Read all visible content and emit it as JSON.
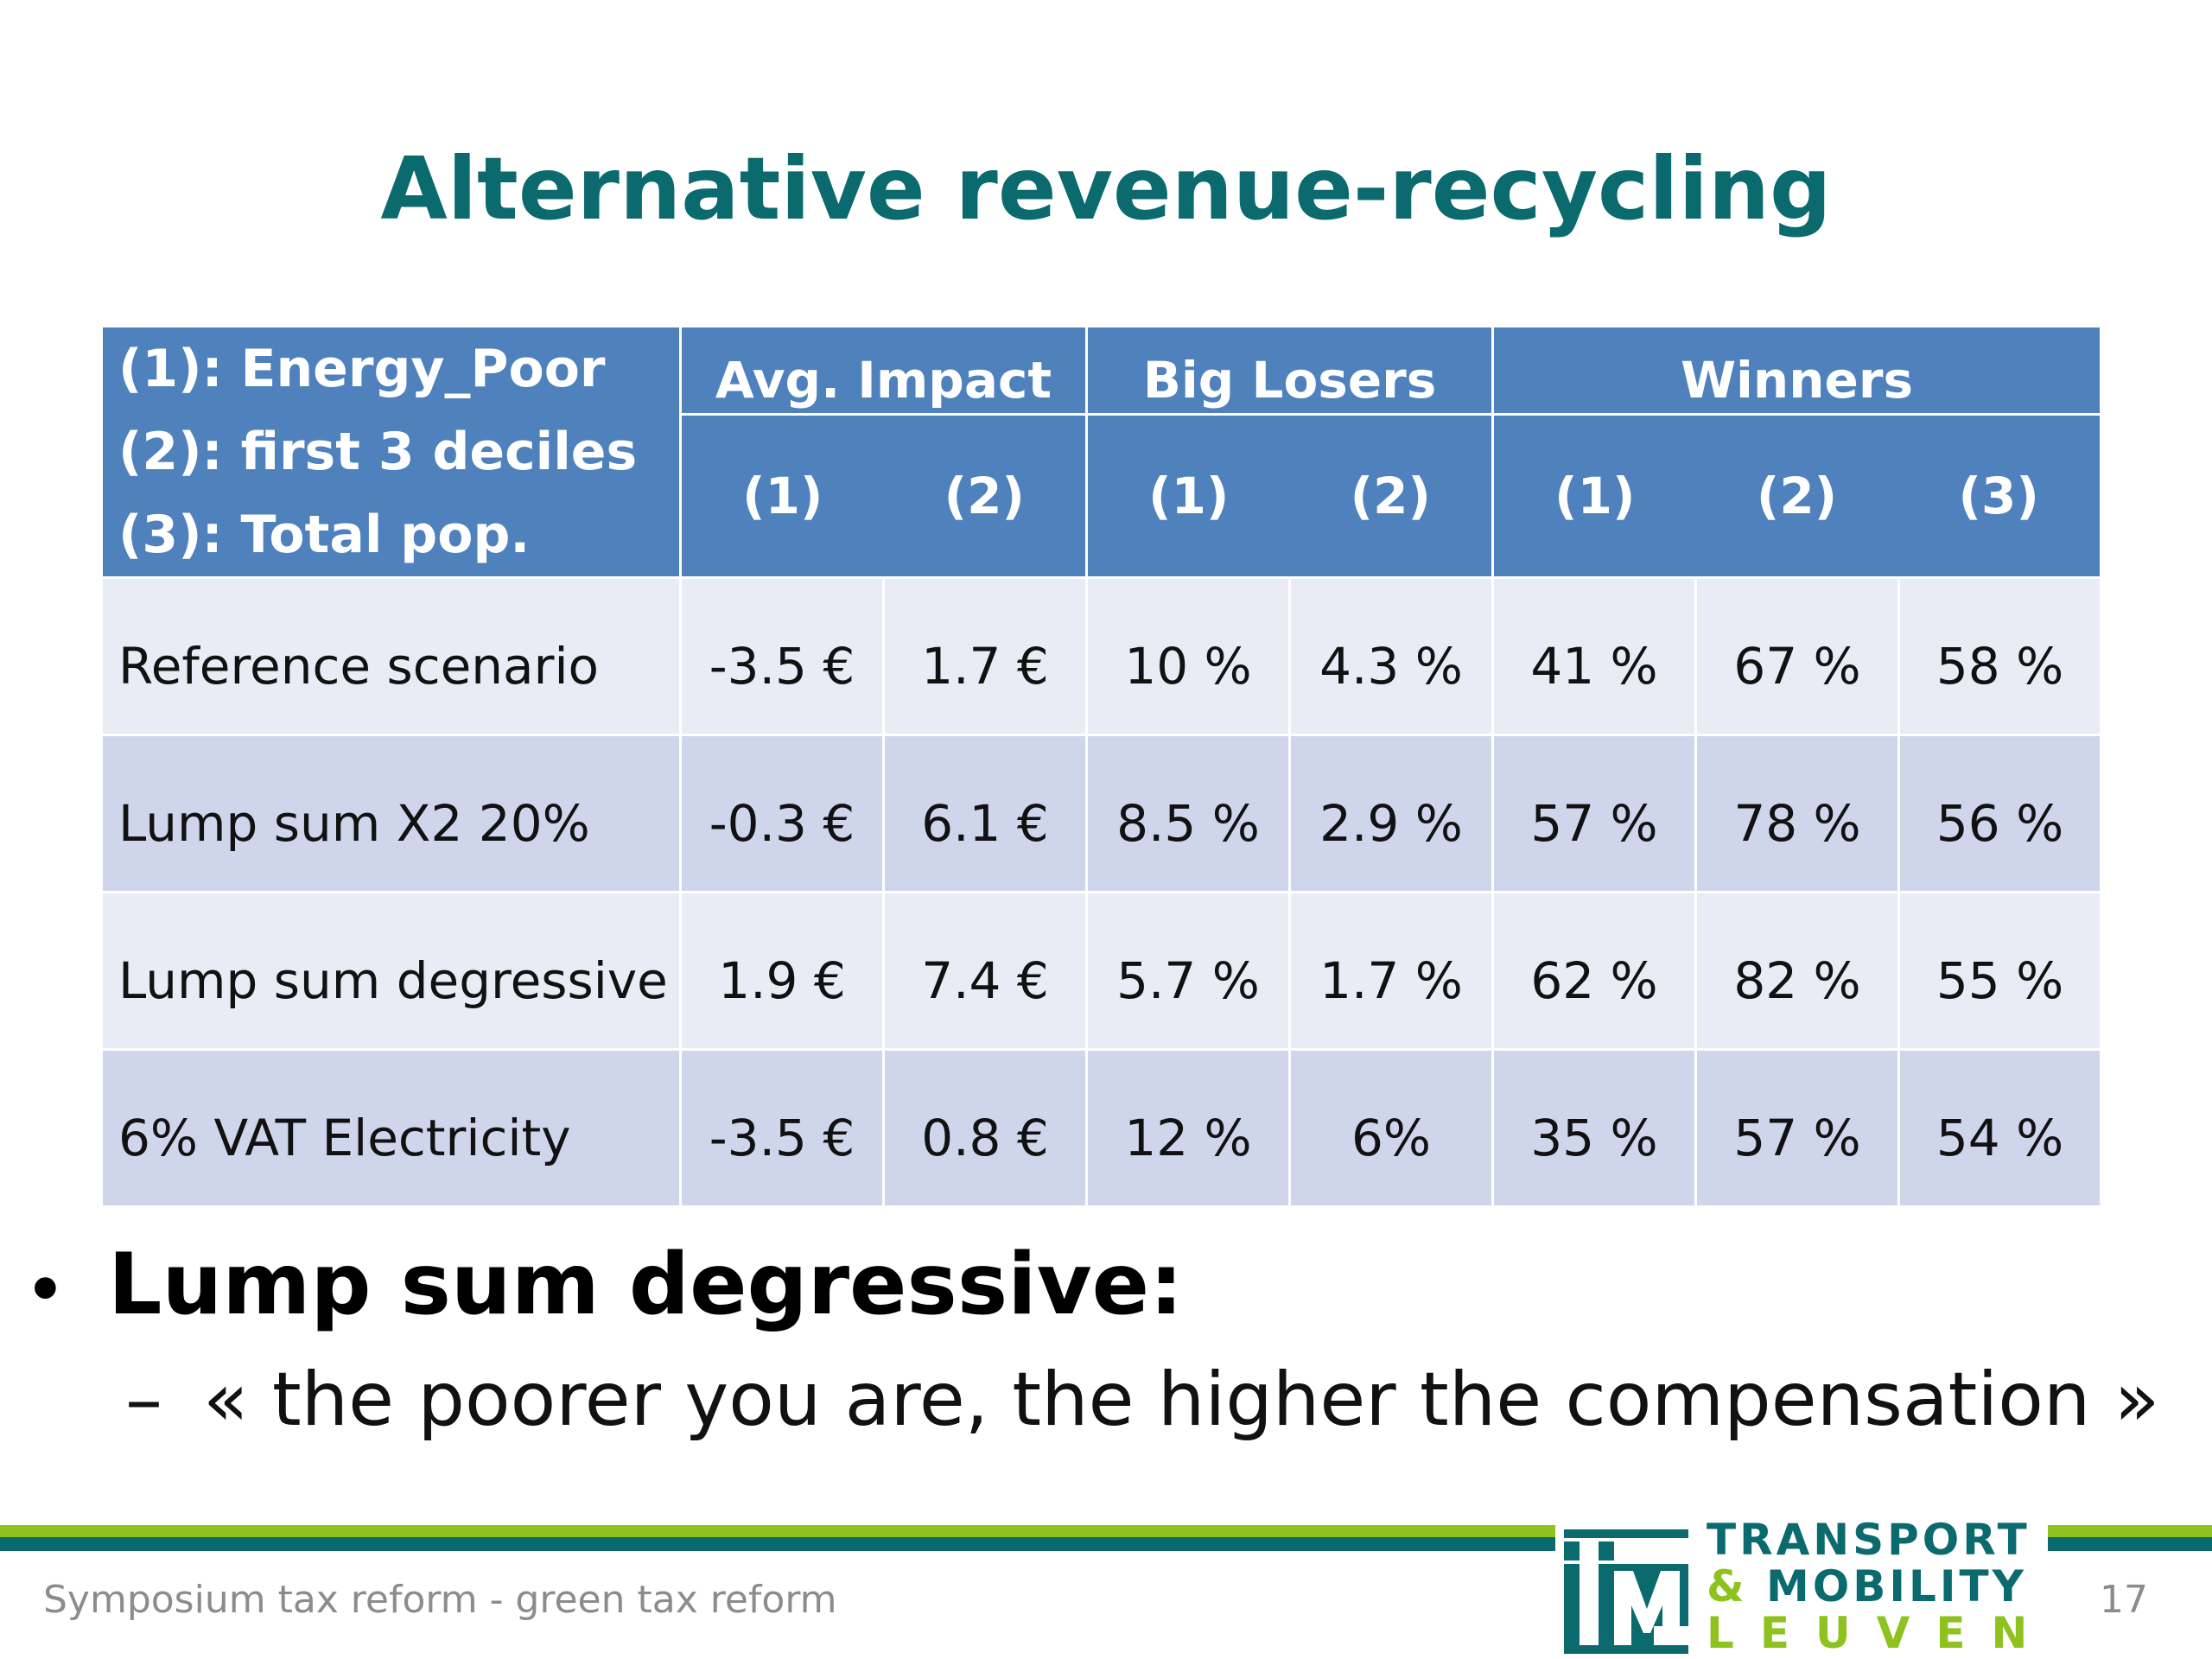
{
  "title": "Alternative revenue-recycling",
  "table": {
    "legend": [
      "(1): Energy_Poor",
      "(2): first 3 deciles",
      "(3): Total pop."
    ],
    "groups": [
      {
        "title": "Avg. Impact",
        "subs": [
          "(1)",
          "(2)"
        ]
      },
      {
        "title": "Big Losers",
        "subs": [
          "(1)",
          "(2)"
        ]
      },
      {
        "title": "Winners",
        "subs": [
          "(1)",
          "(2)",
          "(3)"
        ]
      }
    ],
    "rows": [
      {
        "label": "Reference scenario",
        "cells": [
          "-3.5 €",
          "1.7 €",
          "10 %",
          "4.3 %",
          "41 %",
          "67 %",
          "58 %"
        ]
      },
      {
        "label": "Lump sum X2 20%",
        "cells": [
          "-0.3 €",
          "6.1 €",
          "8.5 %",
          "2.9 %",
          "57 %",
          "78 %",
          "56 %"
        ]
      },
      {
        "label": "Lump sum degressive",
        "cells": [
          "1.9 €",
          "7.4 €",
          "5.7 %",
          "1.7 %",
          "62 %",
          "82 %",
          "55 %"
        ]
      },
      {
        "label": "6% VAT Electricity",
        "cells": [
          "-3.5 €",
          "0.8 €",
          "12 %",
          "6%",
          "35 %",
          "57 %",
          "54 %"
        ]
      }
    ]
  },
  "bullet": {
    "marker": "•",
    "text": "Lump sum degressive:",
    "sub_marker": "–",
    "sub_text": "« the poorer you are, the higher the compensation »"
  },
  "footer": {
    "text": "Symposium tax reform - green tax reform",
    "page": "17"
  },
  "logo": {
    "line1": "TRANSPORT",
    "amp": "&",
    "line2": "MOBILITY",
    "line3": "LEUVEN",
    "mark_icon": "tml-monogram-icon"
  },
  "colors": {
    "title": "#0b6a6e",
    "header_bg": "#4f81bd",
    "row_light": "#e9ebf5",
    "row_dark": "#cfd5ea",
    "accent_green": "#8dc21f",
    "accent_teal": "#0b6a6e"
  }
}
